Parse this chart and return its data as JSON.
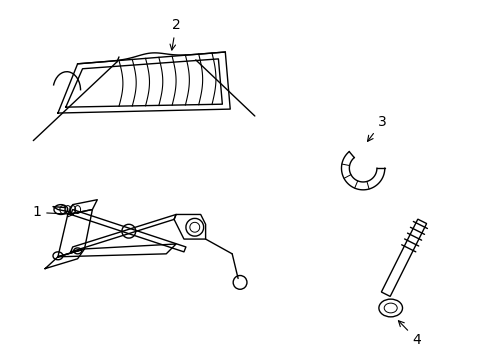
{
  "background_color": "#ffffff",
  "line_color": "#000000",
  "label_fontsize": 10,
  "fig_w": 4.89,
  "fig_h": 3.6,
  "dpi": 100
}
